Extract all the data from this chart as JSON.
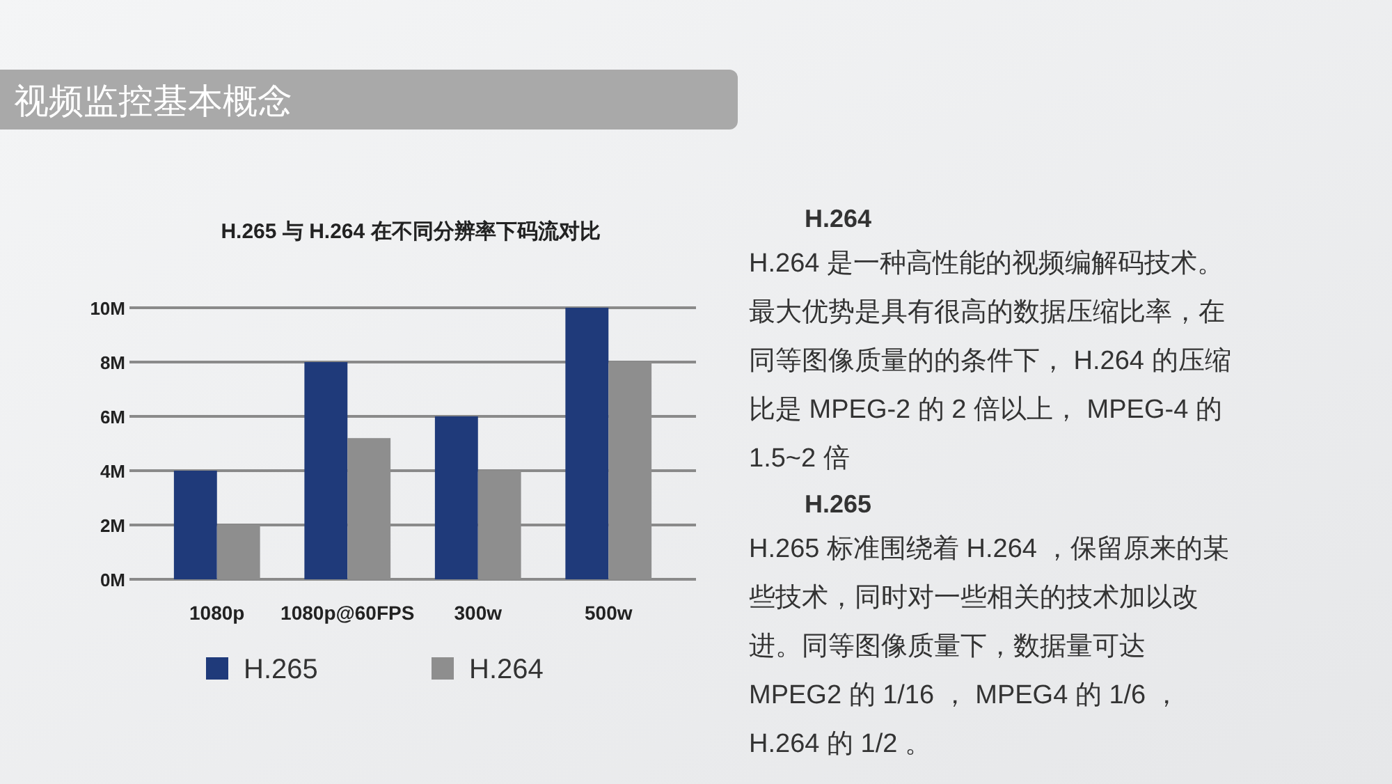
{
  "chart_data": [
    {
      "type": "bar",
      "title": "视频监控基本概念",
      "subtitle": "H.265 与 H.264 在不同分辨率下码流对比",
      "categories": [
        "1080p",
        "1080p@60FPS",
        "300w",
        "500w"
      ],
      "series": [
        {
          "name": "H.265",
          "color": "#1f3a7a",
          "values": [
            4,
            8,
            6,
            10
          ]
        },
        {
          "name": "H.264",
          "color": "#8e8e8e",
          "values": [
            2,
            5.2,
            4,
            8
          ]
        }
      ],
      "ylim": [
        0,
        10
      ],
      "yticks": [
        {
          "value": 0,
          "label": "0M"
        },
        {
          "value": 2,
          "label": "2M"
        },
        {
          "value": 4,
          "label": "4M"
        },
        {
          "value": 6,
          "label": "6M"
        },
        {
          "value": 8,
          "label": "8M"
        },
        {
          "value": 10,
          "label": "10M"
        }
      ],
      "grid": "y",
      "legend": "bottom"
    },
    {
      "type": "other",
      "annotations": [
        "H.264",
        "H.264 是一种高性能的视频编解码技术。最大优势是具有很高的数据压缩比率，在同等图像质量的的条件下， H.264 的压缩比是 MPEG-2 的 2 倍以上， MPEG-4 的 1.5~2 倍",
        "H.265",
        "H.265 标准围绕着 H.264 ，保留原来的某些技术，同时对一些相关的技术加以改进。同等图像质量下，数据量可达 MPEG2 的 1/16 ， MPEG4 的 1/6 ， H.264 的 1/2 。"
      ]
    }
  ]
}
